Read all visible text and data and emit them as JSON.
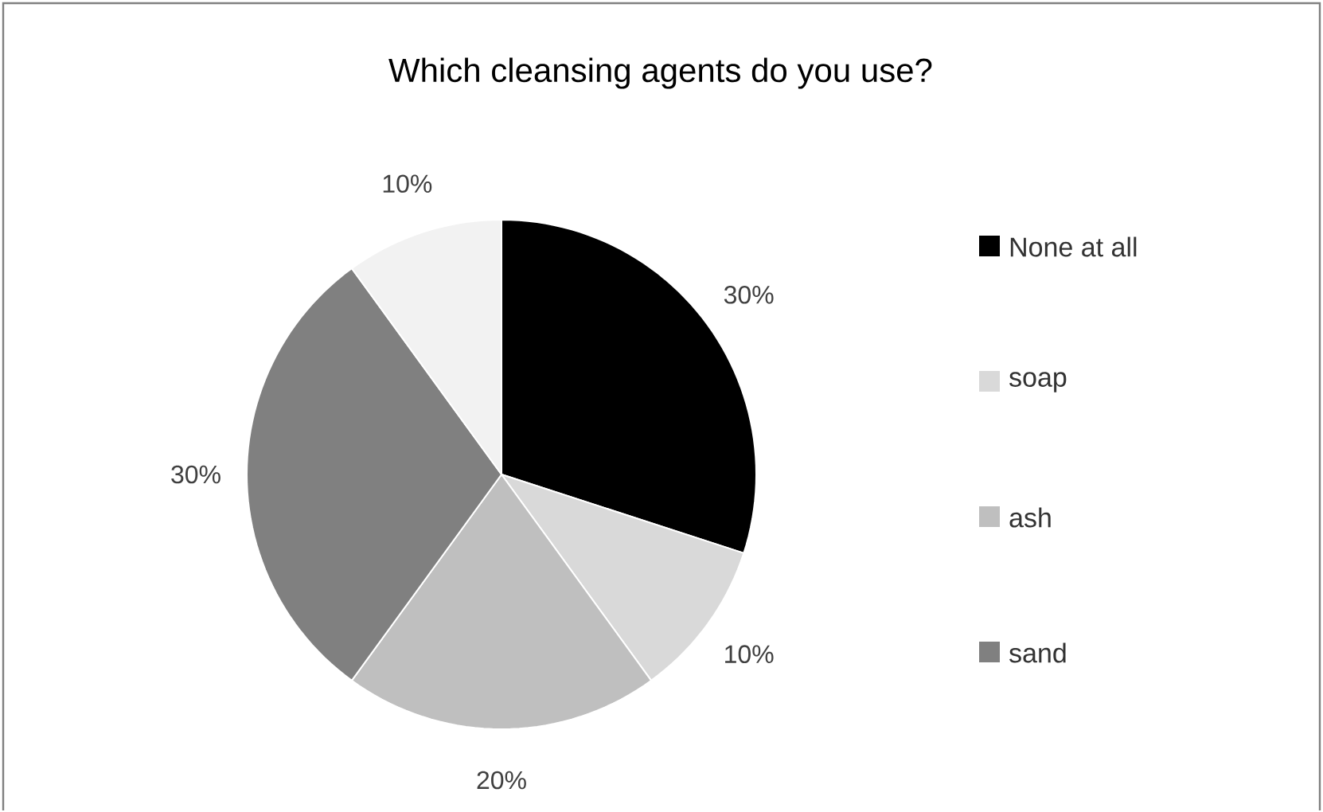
{
  "chart_data": {
    "type": "pie",
    "title": "Which cleansing agents do you use?",
    "categories": [
      "None at all",
      "soap",
      "ash",
      "sand",
      null
    ],
    "values": [
      30,
      10,
      20,
      30,
      10
    ],
    "colors": [
      "#000000",
      "#d9d9d9",
      "#bfbfbf",
      "#808080",
      "#f2f2f2"
    ],
    "value_labels": [
      "30%",
      "10%",
      "20%",
      "30%",
      "10%"
    ],
    "legend": "right"
  }
}
